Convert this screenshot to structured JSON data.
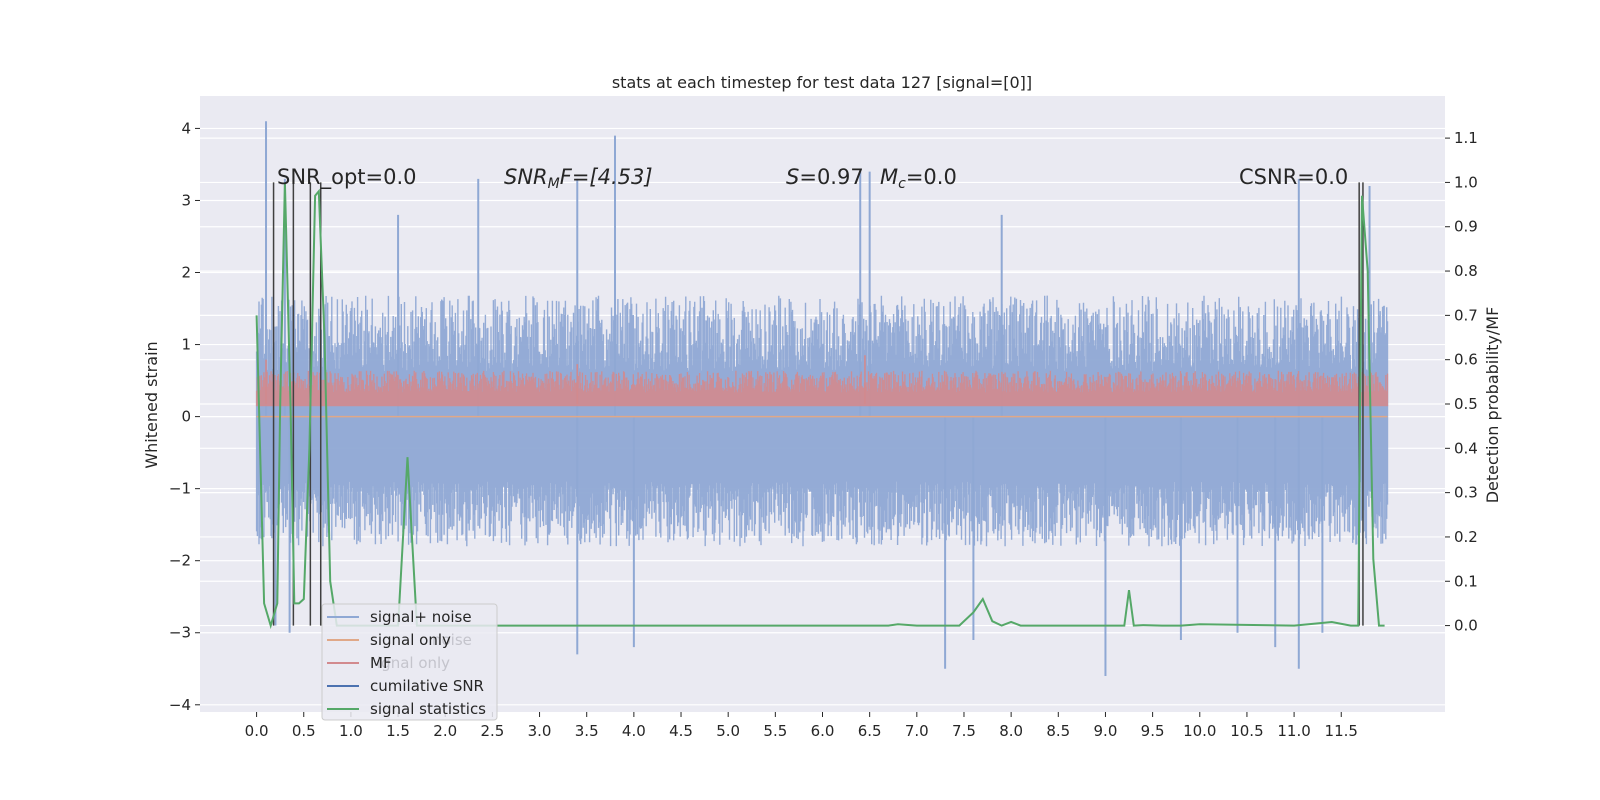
{
  "chart_data": {
    "type": "line",
    "title": "stats at each timestep for test data 127 [signal=[0]]",
    "ylabel_left": "Whitened strain",
    "ylabel_right": "Detection probability/MF",
    "xlim": [
      -0.6,
      12.6
    ],
    "ylim_left": [
      -4.1,
      4.45
    ],
    "ylim_right": [
      -0.195,
      1.195
    ],
    "x_ticks": [
      0.0,
      0.5,
      1.0,
      1.5,
      2.0,
      2.5,
      3.0,
      3.5,
      4.0,
      4.5,
      5.0,
      5.5,
      6.0,
      6.5,
      7.0,
      7.5,
      8.0,
      8.5,
      9.0,
      9.5,
      10.0,
      10.5,
      11.0,
      11.5
    ],
    "x_tick_labels": [
      "0.0",
      "0.5",
      "1.0",
      "1.5",
      "2.0",
      "2.5",
      "3.0",
      "3.5",
      "4.0",
      "4.5",
      "5.0",
      "5.5",
      "6.0",
      "6.5",
      "7.0",
      "7.5",
      "8.0",
      "8.5",
      "9.0",
      "9.5",
      "10.0",
      "10.5",
      "11.0",
      "11.5"
    ],
    "y_left_ticks": [
      -4,
      -3,
      -2,
      -1,
      0,
      1,
      2,
      3,
      4
    ],
    "y_left_tick_labels": [
      "−4",
      "−3",
      "−2",
      "−1",
      "0",
      "1",
      "2",
      "3",
      "4"
    ],
    "y_right_ticks": [
      0.0,
      0.1,
      0.2,
      0.3,
      0.4,
      0.5,
      0.6,
      0.7,
      0.8,
      0.9,
      1.0,
      1.1
    ],
    "y_right_tick_labels": [
      "0.0",
      "0.1",
      "0.2",
      "0.3",
      "0.4",
      "0.5",
      "0.6",
      "0.7",
      "0.8",
      "0.9",
      "1.0",
      "1.1"
    ],
    "grid": true,
    "legend_position": "lower-left",
    "annotations": {
      "snr_opt": "SNR_opt=0.0",
      "snr_mf_prefix": "SNR",
      "snr_mf_sub": "M",
      "snr_mf_suffix": "F=[4.53]",
      "s_prefix": "S",
      "s_value": "=0.97",
      "mc_prefix": "M",
      "mc_sub": "c",
      "mc_value": "=0.0",
      "csnr": "CSNR=0.0"
    },
    "legend": [
      {
        "label": "signal+ noise",
        "color": "#8fa8d4"
      },
      {
        "label": "signal only",
        "color": "#e0a888"
      },
      {
        "label": "MF",
        "color": "#d28a8e"
      },
      {
        "label": "cumilative SNR",
        "color": "#4c72b0"
      },
      {
        "label": "signal statistics",
        "color": "#55a868"
      }
    ],
    "legend_ghost": {
      "label_1": "noise",
      "label_2": "ignal only"
    },
    "series": [
      {
        "name": "signal+ noise",
        "axis": "left",
        "note": "dense noise band approx -1.5..1.4 with spikes",
        "band_min": -1.5,
        "band_max": 1.4,
        "x_range": [
          0.0,
          11.99
        ],
        "spikes_up": [
          [
            0.1,
            4.1
          ],
          [
            0.3,
            3.3
          ],
          [
            2.35,
            3.3
          ],
          [
            3.4,
            3.3
          ],
          [
            3.8,
            3.9
          ],
          [
            6.4,
            3.4
          ],
          [
            6.5,
            3.4
          ],
          [
            11.05,
            3.3
          ],
          [
            11.8,
            3.2
          ],
          [
            1.5,
            2.8
          ],
          [
            7.9,
            2.8
          ]
        ],
        "spikes_down": [
          [
            0.2,
            -2.9
          ],
          [
            0.35,
            -3.0
          ],
          [
            3.4,
            -3.3
          ],
          [
            4.0,
            -3.2
          ],
          [
            7.3,
            -3.5
          ],
          [
            7.6,
            -3.1
          ],
          [
            9.0,
            -3.6
          ],
          [
            9.8,
            -3.1
          ],
          [
            10.4,
            -3.0
          ],
          [
            10.8,
            -3.2
          ],
          [
            11.05,
            -3.5
          ],
          [
            11.3,
            -3.0
          ]
        ],
        "color": "#8fa8d4"
      },
      {
        "name": "signal only",
        "axis": "left",
        "x": [
          0.0,
          11.99
        ],
        "y": [
          0.0,
          0.0
        ],
        "color": "#e0a888"
      },
      {
        "name": "MF",
        "axis": "right",
        "note": "dense band approx 0.5..0.57 in right-axis units",
        "band_min": 0.5,
        "band_max": 0.575,
        "x_range": [
          0.0,
          11.99
        ],
        "spikes_up": [
          [
            6.45,
            0.61
          ],
          [
            0.1,
            0.6
          ],
          [
            3.4,
            0.59
          ]
        ],
        "color": "#d28a8e"
      },
      {
        "name": "signal statistics",
        "axis": "right",
        "x": [
          0.0,
          0.08,
          0.15,
          0.22,
          0.25,
          0.3,
          0.36,
          0.4,
          0.45,
          0.5,
          0.56,
          0.62,
          0.66,
          0.72,
          0.78,
          0.85,
          1.0,
          1.5,
          1.6,
          1.7,
          2.0,
          5.0,
          6.0,
          6.7,
          6.8,
          7.0,
          7.45,
          7.6,
          7.7,
          7.8,
          7.9,
          8.0,
          8.1,
          8.5,
          9.0,
          9.2,
          9.25,
          9.3,
          9.4,
          9.6,
          9.8,
          10.0,
          11.0,
          11.4,
          11.6,
          11.68,
          11.72,
          11.78,
          11.84,
          11.9,
          11.96
        ],
        "y": [
          0.7,
          0.05,
          0.0,
          0.05,
          0.5,
          1.0,
          0.5,
          0.05,
          0.05,
          0.06,
          0.4,
          0.97,
          0.98,
          0.65,
          0.1,
          0.0,
          0.0,
          0.0,
          0.38,
          0.0,
          0.0,
          0.0,
          0.0,
          0.0,
          0.003,
          0.0,
          0.0,
          0.03,
          0.06,
          0.01,
          0.0,
          0.008,
          0.0,
          0.0,
          0.0,
          0.0,
          0.08,
          0.0,
          0.001,
          0.0,
          0.0,
          0.003,
          0.0,
          0.008,
          0.0,
          0.0,
          0.97,
          0.8,
          0.15,
          0.0,
          0.0
        ],
        "color": "#55a868"
      }
    ],
    "vertical_lines": {
      "x": [
        0.18,
        0.39,
        0.57,
        0.68,
        11.69,
        11.73
      ],
      "ymin_right": [
        0.0,
        0.0,
        0.0,
        0.0,
        0.0,
        0.0
      ],
      "ymax_right": [
        1.0,
        1.0,
        1.0,
        1.0,
        1.0,
        1.0
      ],
      "color": "#404040"
    }
  }
}
